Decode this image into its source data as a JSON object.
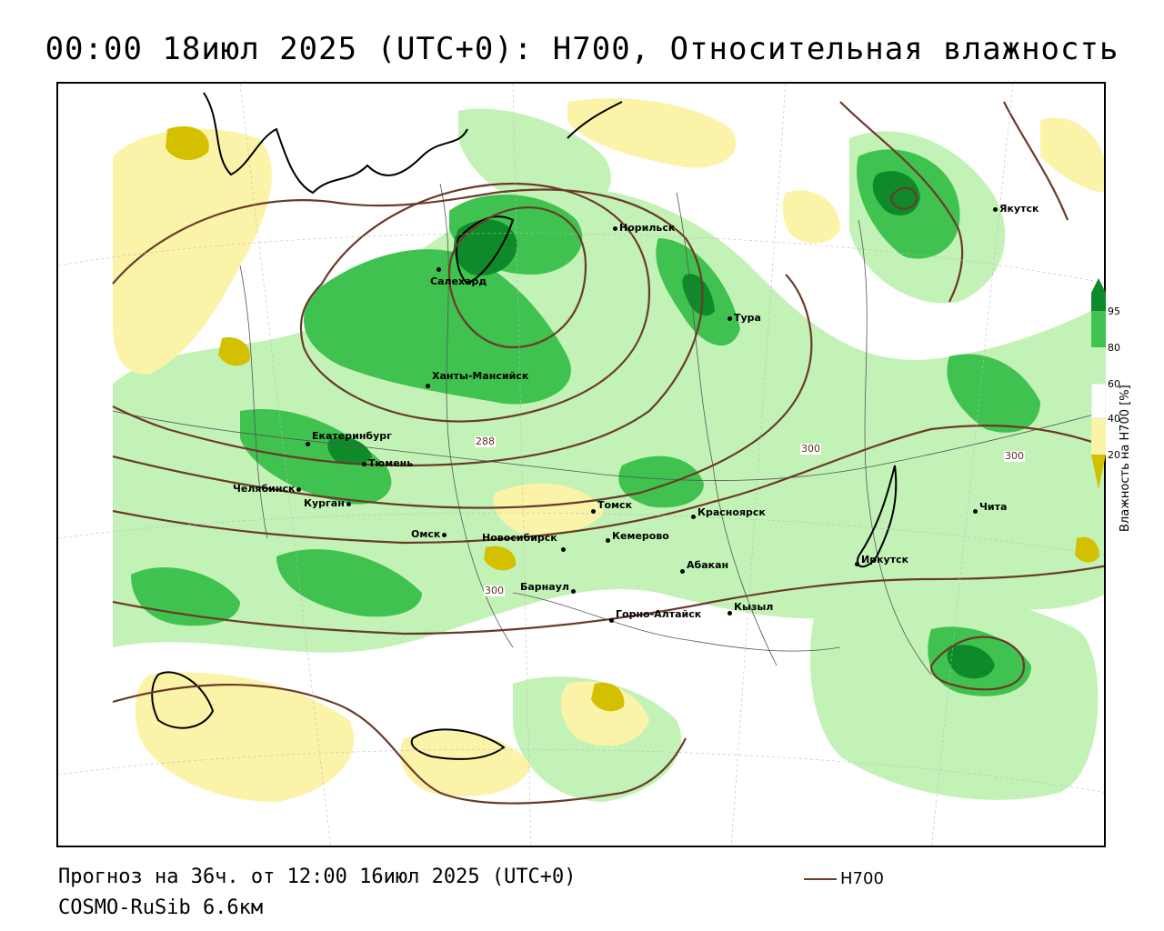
{
  "title": "00:00 18июл 2025 (UTC+0): H700, Относительная влажность",
  "footer": {
    "forecast": "Прогноз на 36ч. от 12:00 16июл 2025 (UTC+0)",
    "model": "COSMO-RuSib 6.6км",
    "line_legend_label": "H700"
  },
  "legend": {
    "title": "Влажность на H700 [%]",
    "ticks": [
      "95",
      "80",
      "60",
      "40",
      "20"
    ],
    "colors": {
      "dry_dark": "#d4c000",
      "dry_light": "#fbf3a8",
      "neutral": "#ffffff",
      "wet_light": "#c2f2b6",
      "wet_mid": "#3fc24f",
      "wet_dark": "#0f8a2a",
      "contour": "#6b3a2a"
    }
  },
  "contour_labels": [
    "288",
    "300",
    "300",
    "300"
  ],
  "cities": [
    {
      "name": "Салехард"
    },
    {
      "name": "Норильск"
    },
    {
      "name": "Тура"
    },
    {
      "name": "Якутск"
    },
    {
      "name": "Ханты-Мансийск"
    },
    {
      "name": "Екатеринбург"
    },
    {
      "name": "Тюмень"
    },
    {
      "name": "Челябинск"
    },
    {
      "name": "Курган"
    },
    {
      "name": "Омск"
    },
    {
      "name": "Новосибирск"
    },
    {
      "name": "Томск"
    },
    {
      "name": "Кемерово"
    },
    {
      "name": "Красноярск"
    },
    {
      "name": "Барнаул"
    },
    {
      "name": "Абакан"
    },
    {
      "name": "Горно-Алтайск"
    },
    {
      "name": "Кызыл"
    },
    {
      "name": "Иркутск"
    },
    {
      "name": "Чита"
    }
  ]
}
